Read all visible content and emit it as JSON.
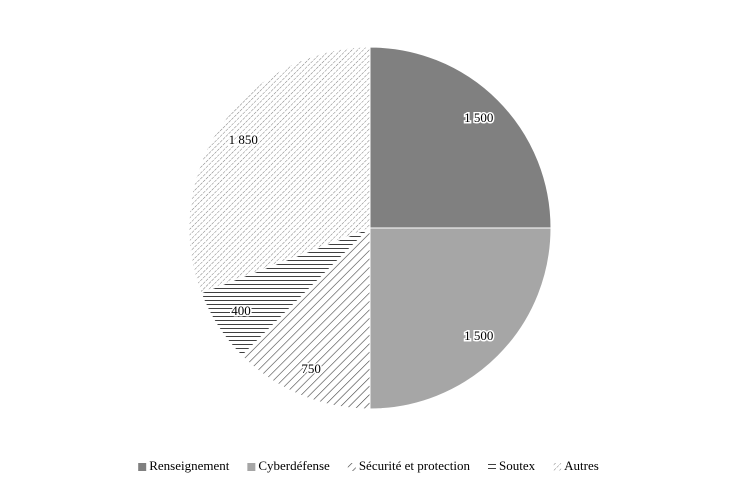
{
  "chart_data": {
    "type": "pie",
    "categories": [
      "Renseignement",
      "Cyberdéfense",
      "Sécurité et protection",
      "Soutex",
      "Autres"
    ],
    "values": [
      1500,
      1500,
      750,
      400,
      1850
    ],
    "value_labels": [
      "1 500",
      "1 500",
      "750",
      "400",
      "1 850"
    ],
    "colors": [
      "#808080",
      "#a6a6a6",
      "#404040",
      "#404040",
      "#404040"
    ],
    "hatches": [
      "solid",
      "solid",
      "back-wide",
      "horizontal",
      "back-fine"
    ],
    "legend": "bottom"
  }
}
